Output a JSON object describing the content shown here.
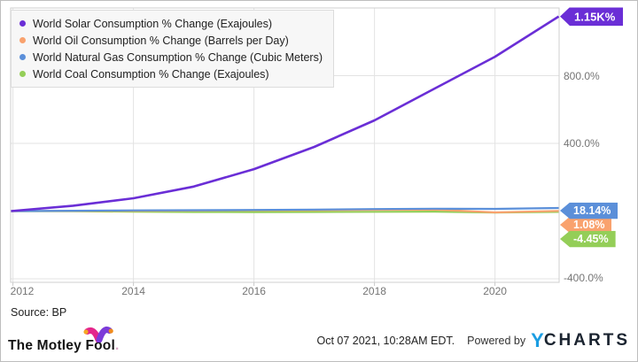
{
  "chart_data": {
    "type": "line",
    "x": [
      2012,
      2013,
      2014,
      2015,
      2016,
      2017,
      2018,
      2019,
      2020,
      2021
    ],
    "series": [
      {
        "name": "World Solar Consumption % Change (Exajoules)",
        "color": "#6A2ED6",
        "end_label": "1.15K%",
        "values": [
          0,
          32,
          76,
          145,
          248,
          379,
          536,
          724,
          912,
          1150
        ]
      },
      {
        "name": "World Oil Consumption % Change (Barrels per Day)",
        "color": "#F9A26E",
        "end_label": "1.08%",
        "values": [
          0,
          1,
          2,
          3,
          5,
          6,
          8,
          9,
          -8,
          1.08
        ]
      },
      {
        "name": "World Natural Gas Consumption % Change (Cubic Meters)",
        "color": "#5B8FD9",
        "end_label": "18.14%",
        "values": [
          0,
          2,
          4,
          5,
          7,
          9,
          12,
          14,
          13,
          18.14
        ]
      },
      {
        "name": "World Coal Consumption % Change (Exajoules)",
        "color": "#94CE58",
        "end_label": "-4.45%",
        "values": [
          0,
          -1,
          -3,
          -5,
          -6,
          -5,
          -4,
          -3,
          -9,
          -4.45
        ]
      }
    ],
    "y_ticks": [
      {
        "label": "800.0%",
        "value": 800
      },
      {
        "label": "400.0%",
        "value": 400
      },
      {
        "label": "-400.0%",
        "value": -400
      }
    ],
    "x_ticks": [
      2012,
      2014,
      2016,
      2018,
      2020
    ],
    "ylim": [
      -423,
      1213
    ],
    "grid": true,
    "legend_position": "top-left"
  },
  "source": "Source: BP",
  "footer": {
    "timestamp": "Oct 07 2021, 10:28AM EDT.",
    "powered_by": "Powered by",
    "ycharts_y": "Y",
    "ycharts_rest": "CHARTS",
    "motley_fool": "The Motley Fool",
    "motley_fool_dot": "."
  },
  "colors": {
    "solar": "#6A2ED6",
    "oil": "#F9A26E",
    "natural_gas": "#5B8FD9",
    "coal": "#94CE58",
    "ycharts_blue": "#1B9DE2"
  }
}
